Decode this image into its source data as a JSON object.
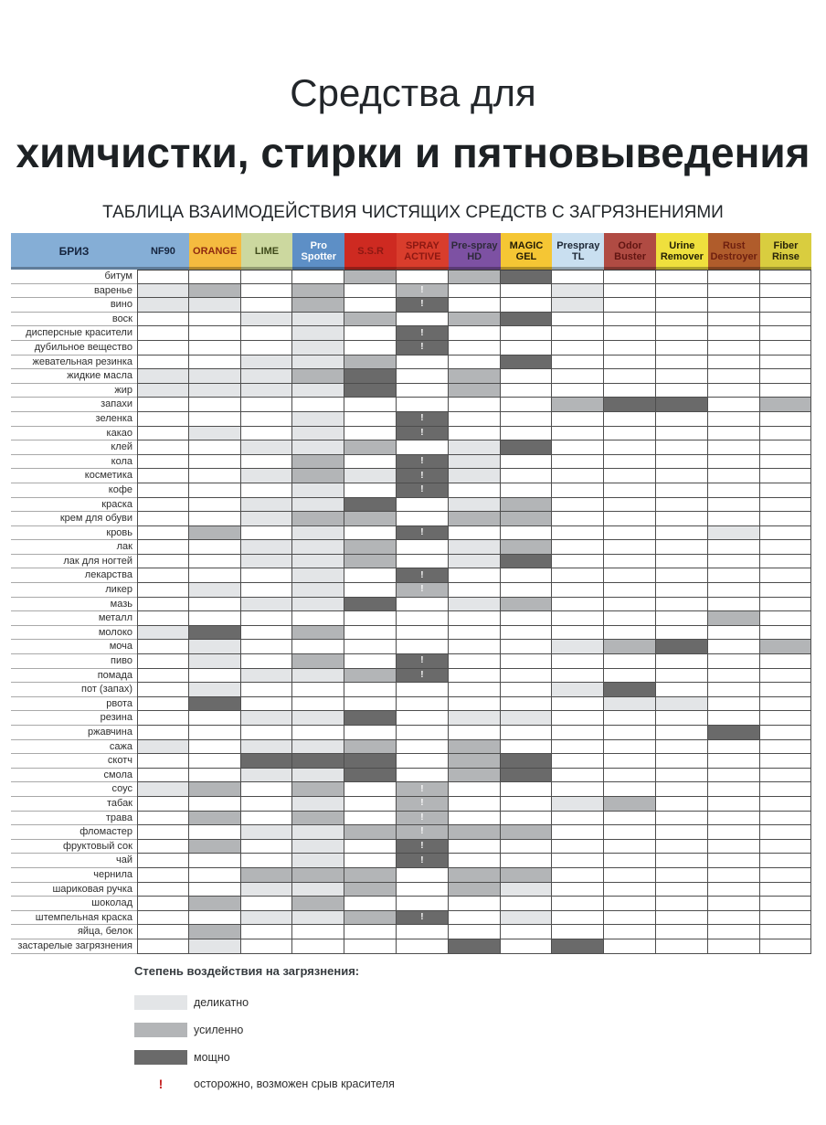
{
  "title": {
    "line1": "Средства для",
    "line2": "химчистки, стирки и пятновыведения"
  },
  "subtitle": "ТАБЛИЦА ВЗАИМОДЕЙСТВИЯ ЧИСТЯЩИХ СРЕДСТВ С ЗАГРЯЗНЕНИЯМИ",
  "colors": {
    "level1": "#e3e5e7",
    "level2": "#b3b5b7",
    "level3": "#6a6a6a",
    "warn": "#c42020"
  },
  "table": {
    "brand_header": "БРИЗ",
    "brand_bg": "#85aed6",
    "brand_fg": "#16253f",
    "columns": [
      {
        "label": "NF90",
        "bg": "#85aed6",
        "fg": "#16253f"
      },
      {
        "label": "ORANGE",
        "bg": "#f5bb3f",
        "fg": "#8f2a10"
      },
      {
        "label": "LIME",
        "bg": "#ccd89f",
        "fg": "#3f4a1a"
      },
      {
        "label": "Pro Spotter",
        "bg": "#5d8fc6",
        "fg": "#ffffff"
      },
      {
        "label": "S.S.R",
        "bg": "#ce2a21",
        "fg": "#8c1812"
      },
      {
        "label": "SPRAY ACTIVE",
        "bg": "#d93d2c",
        "fg": "#8c1812"
      },
      {
        "label": "Pre-spray HD",
        "bg": "#7d51a3",
        "fg": "#2e2a3a"
      },
      {
        "label": "MAGIC GEL",
        "bg": "#f5c634",
        "fg": "#241c06"
      },
      {
        "label": "Prespray TL",
        "bg": "#c9dff0",
        "fg": "#1e2836"
      },
      {
        "label": "Odor Buster",
        "bg": "#b04b43",
        "fg": "#611512"
      },
      {
        "label": "Urine Remover",
        "bg": "#efe03d",
        "fg": "#242106"
      },
      {
        "label": "Rust Destroyer",
        "bg": "#b05c2b",
        "fg": "#6e1f0f"
      },
      {
        "label": "Fiber Rinse",
        "bg": "#d9cd3f",
        "fg": "#292509"
      }
    ],
    "rows": [
      {
        "label": "битум",
        "cells": [
          "",
          "",
          "",
          "",
          "2",
          "",
          "2",
          "3",
          "",
          "",
          "",
          "",
          ""
        ]
      },
      {
        "label": "варенье",
        "cells": [
          "1",
          "2",
          "",
          "2",
          "",
          "2!",
          "",
          "",
          "1",
          "",
          "",
          "",
          ""
        ]
      },
      {
        "label": "вино",
        "cells": [
          "1",
          "1",
          "",
          "2",
          "",
          "3!",
          "",
          "",
          "1",
          "",
          "",
          "",
          ""
        ]
      },
      {
        "label": "воск",
        "cells": [
          "",
          "",
          "1",
          "1",
          "2",
          "",
          "2",
          "3",
          "",
          "",
          "",
          "",
          ""
        ]
      },
      {
        "label": "дисперсные красители",
        "cells": [
          "",
          "",
          "",
          "1",
          "",
          "3!",
          "",
          "",
          "",
          "",
          "",
          "",
          ""
        ]
      },
      {
        "label": "дубильное вещество",
        "cells": [
          "",
          "",
          "",
          "1",
          "",
          "3!",
          "",
          "",
          "",
          "",
          "",
          "",
          ""
        ]
      },
      {
        "label": "жевательная резинка",
        "cells": [
          "",
          "",
          "1",
          "1",
          "2",
          "",
          "",
          "3",
          "",
          "",
          "",
          "",
          ""
        ]
      },
      {
        "label": "жидкие масла",
        "cells": [
          "1",
          "1",
          "1",
          "2",
          "3",
          "",
          "2",
          "",
          "",
          "",
          "",
          "",
          ""
        ]
      },
      {
        "label": "жир",
        "cells": [
          "1",
          "1",
          "1",
          "1",
          "3",
          "",
          "2",
          "",
          "",
          "",
          "",
          "",
          ""
        ]
      },
      {
        "label": "запахи",
        "cells": [
          "",
          "",
          "",
          "",
          "",
          "",
          "",
          "",
          "2",
          "3",
          "3",
          "",
          "2"
        ]
      },
      {
        "label": "зеленка",
        "cells": [
          "",
          "",
          "",
          "1",
          "",
          "3!",
          "",
          "",
          "",
          "",
          "",
          "",
          ""
        ]
      },
      {
        "label": "какао",
        "cells": [
          "",
          "1",
          "",
          "1",
          "",
          "3!",
          "",
          "",
          "",
          "",
          "",
          "",
          ""
        ]
      },
      {
        "label": "клей",
        "cells": [
          "",
          "",
          "1",
          "1",
          "2",
          "",
          "1",
          "3",
          "",
          "",
          "",
          "",
          ""
        ]
      },
      {
        "label": "кола",
        "cells": [
          "",
          "",
          "",
          "2",
          "",
          "3!",
          "1",
          "",
          "",
          "",
          "",
          "",
          ""
        ]
      },
      {
        "label": "косметика",
        "cells": [
          "",
          "",
          "1",
          "2",
          "1",
          "3!",
          "1",
          "",
          "",
          "",
          "",
          "",
          ""
        ]
      },
      {
        "label": "кофе",
        "cells": [
          "",
          "",
          "",
          "1",
          "",
          "3!",
          "",
          "",
          "",
          "",
          "",
          "",
          ""
        ]
      },
      {
        "label": "краска",
        "cells": [
          "",
          "",
          "1",
          "1",
          "3",
          "",
          "1",
          "2",
          "",
          "",
          "",
          "",
          ""
        ]
      },
      {
        "label": "крем для обуви",
        "cells": [
          "",
          "",
          "1",
          "2",
          "2",
          "",
          "2",
          "2",
          "",
          "",
          "",
          "",
          ""
        ]
      },
      {
        "label": "кровь",
        "cells": [
          "",
          "2",
          "",
          "1",
          "",
          "3!",
          "",
          "",
          "",
          "",
          "",
          "1",
          ""
        ]
      },
      {
        "label": "лак",
        "cells": [
          "",
          "",
          "1",
          "1",
          "2",
          "",
          "1",
          "2",
          "",
          "",
          "",
          "",
          ""
        ]
      },
      {
        "label": "лак для ногтей",
        "cells": [
          "",
          "",
          "1",
          "1",
          "2",
          "",
          "1",
          "3",
          "",
          "",
          "",
          "",
          ""
        ]
      },
      {
        "label": "лекарства",
        "cells": [
          "",
          "",
          "",
          "1",
          "",
          "3!",
          "",
          "",
          "",
          "",
          "",
          "",
          ""
        ]
      },
      {
        "label": "ликер",
        "cells": [
          "",
          "1",
          "",
          "1",
          "",
          "2!",
          "",
          "",
          "",
          "",
          "",
          "",
          ""
        ]
      },
      {
        "label": "мазь",
        "cells": [
          "",
          "",
          "1",
          "1",
          "3",
          "",
          "1",
          "2",
          "",
          "",
          "",
          "",
          ""
        ]
      },
      {
        "label": "металл",
        "cells": [
          "",
          "",
          "",
          "",
          "",
          "",
          "",
          "",
          "",
          "",
          "",
          "2",
          ""
        ]
      },
      {
        "label": "молоко",
        "cells": [
          "1",
          "3",
          "",
          "2",
          "",
          "",
          "",
          "",
          "",
          "",
          "",
          "",
          ""
        ]
      },
      {
        "label": "моча",
        "cells": [
          "",
          "1",
          "",
          "",
          "",
          "",
          "",
          "",
          "1",
          "2",
          "3",
          "",
          "2"
        ]
      },
      {
        "label": "пиво",
        "cells": [
          "",
          "1",
          "",
          "2",
          "",
          "3!",
          "",
          "",
          "",
          "",
          "",
          "",
          ""
        ]
      },
      {
        "label": "помада",
        "cells": [
          "",
          "",
          "1",
          "1",
          "2",
          "3!",
          "",
          "",
          "",
          "",
          "",
          "",
          ""
        ]
      },
      {
        "label": "пот (запах)",
        "cells": [
          "",
          "1",
          "",
          "",
          "",
          "",
          "",
          "",
          "1",
          "3",
          "",
          "",
          ""
        ]
      },
      {
        "label": "рвота",
        "cells": [
          "",
          "3",
          "",
          "",
          "",
          "",
          "",
          "",
          "",
          "1",
          "1",
          "",
          ""
        ]
      },
      {
        "label": "резина",
        "cells": [
          "",
          "",
          "1",
          "1",
          "3",
          "",
          "1",
          "1",
          "",
          "",
          "",
          "",
          ""
        ]
      },
      {
        "label": "ржавчина",
        "cells": [
          "",
          "",
          "",
          "",
          "",
          "",
          "",
          "",
          "",
          "",
          "",
          "3",
          ""
        ]
      },
      {
        "label": "сажа",
        "cells": [
          "1",
          "",
          "1",
          "1",
          "2",
          "",
          "2",
          "",
          "",
          "",
          "",
          "",
          ""
        ]
      },
      {
        "label": "скотч",
        "cells": [
          "",
          "",
          "3",
          "3",
          "3",
          "",
          "2",
          "3",
          "",
          "",
          "",
          "",
          ""
        ]
      },
      {
        "label": "смола",
        "cells": [
          "",
          "",
          "1",
          "1",
          "3",
          "",
          "2",
          "3",
          "",
          "",
          "",
          "",
          ""
        ]
      },
      {
        "label": "соус",
        "cells": [
          "1",
          "2",
          "",
          "2",
          "",
          "2!",
          "",
          "",
          "",
          "",
          "",
          "",
          ""
        ]
      },
      {
        "label": "табак",
        "cells": [
          "",
          "",
          "",
          "1",
          "",
          "2!",
          "",
          "",
          "1",
          "2",
          "",
          "",
          ""
        ]
      },
      {
        "label": "трава",
        "cells": [
          "",
          "2",
          "",
          "2",
          "",
          "2!",
          "",
          "",
          "",
          "",
          "",
          "",
          ""
        ]
      },
      {
        "label": "фломастер",
        "cells": [
          "",
          "",
          "1",
          "1",
          "2",
          "2!",
          "2",
          "2",
          "",
          "",
          "",
          "",
          ""
        ]
      },
      {
        "label": "фруктовый сок",
        "cells": [
          "",
          "2",
          "",
          "1",
          "",
          "3!",
          "",
          "",
          "",
          "",
          "",
          "",
          ""
        ]
      },
      {
        "label": "чай",
        "cells": [
          "",
          "",
          "",
          "1",
          "",
          "3!",
          "",
          "",
          "",
          "",
          "",
          "",
          ""
        ]
      },
      {
        "label": "чернила",
        "cells": [
          "",
          "",
          "2",
          "2",
          "2",
          "",
          "2",
          "2",
          "",
          "",
          "",
          "",
          ""
        ]
      },
      {
        "label": "шариковая ручка",
        "cells": [
          "",
          "",
          "1",
          "1",
          "2",
          "",
          "2",
          "1",
          "",
          "",
          "",
          "",
          ""
        ]
      },
      {
        "label": "шоколад",
        "cells": [
          "",
          "2",
          "",
          "2",
          "",
          "",
          "",
          "",
          "",
          "",
          "",
          "",
          ""
        ]
      },
      {
        "label": "штемпельная краска",
        "cells": [
          "",
          "",
          "1",
          "1",
          "2",
          "3!",
          "",
          "1",
          "",
          "",
          "",
          "",
          ""
        ]
      },
      {
        "label": "яйца, белок",
        "cells": [
          "",
          "2",
          "",
          "",
          "",
          "",
          "",
          "",
          "",
          "",
          "",
          "",
          ""
        ]
      },
      {
        "label": "застарелые загрязнения",
        "cells": [
          "",
          "1",
          "",
          "",
          "",
          "",
          "3",
          "",
          "3",
          "",
          "",
          "",
          ""
        ]
      }
    ]
  },
  "legend": {
    "title": "Степень воздействия на загрязнения:",
    "items": [
      {
        "label": "деликатно",
        "level": "1"
      },
      {
        "label": "усиленно",
        "level": "2"
      },
      {
        "label": "мощно",
        "level": "3"
      }
    ],
    "warn_mark": "!",
    "warn_text": "осторожно, возможен срыв красителя"
  }
}
